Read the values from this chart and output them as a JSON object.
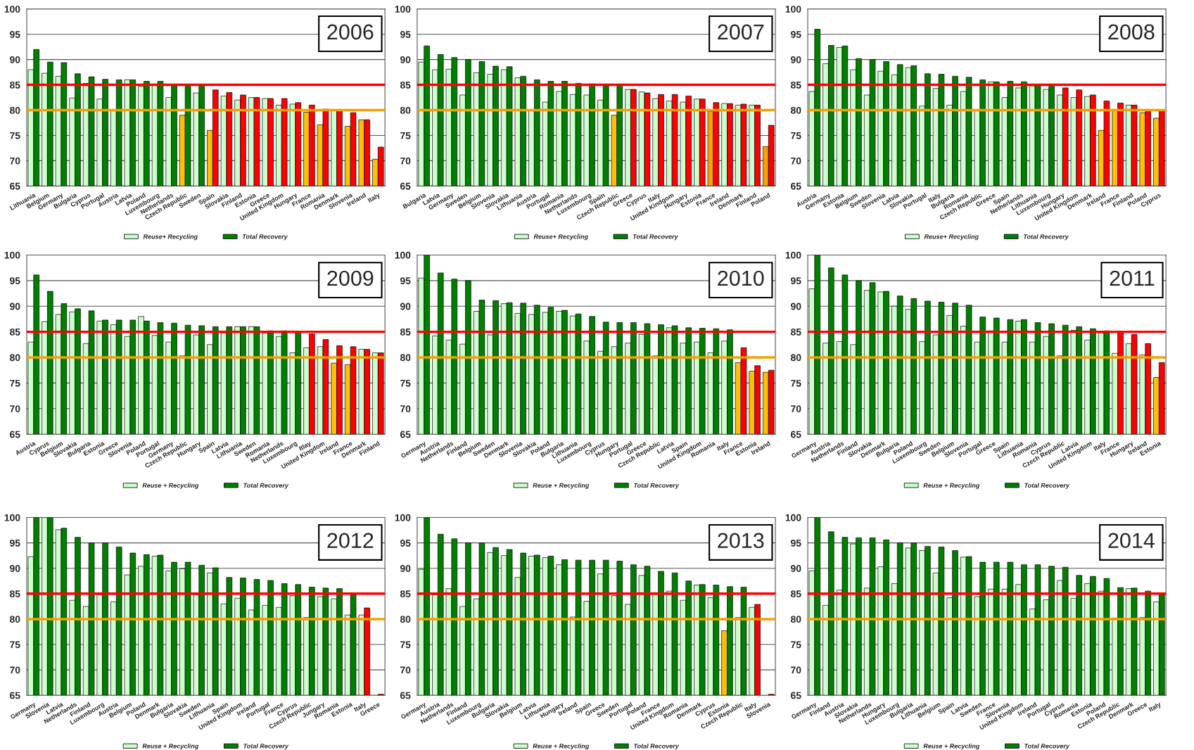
{
  "chart_data": [
    {
      "type": "bar",
      "title": "2006",
      "categories": [
        "Lithuania",
        "Belgium",
        "Germany",
        "Bulgaria",
        "Cyprus",
        "Portugal",
        "Austria",
        "Latvia",
        "Poland",
        "Luxembourg",
        "Netherlands",
        "Czech Republic",
        "Sweden",
        "Spain",
        "Slovakia",
        "Finland",
        "Estonia",
        "Greece",
        "United Kingdom",
        "Hungary",
        "France",
        "Romania",
        "Denmark",
        "Slovenia",
        "Ireland",
        "Italy"
      ],
      "series": [
        {
          "name": "Reuse+ Recycling",
          "color": "#ccffcc",
          "values": [
            88,
            87.3,
            86.7,
            82.4,
            85.3,
            82.2,
            80,
            86,
            84.7,
            85,
            82.5,
            79,
            83.4,
            76,
            82.8,
            82,
            82.5,
            82.3,
            81,
            81.2,
            79.6,
            77.1,
            80,
            76.8,
            78.1,
            70.3
          ],
          "colors": [
            "#ccffcc",
            "#ccffcc",
            "#ccffcc",
            "#ccffcc",
            "#ccffcc",
            "#ccffcc",
            "#ccffcc",
            "#ccffcc",
            "#ccffcc",
            "#ccffcc",
            "#ccffcc",
            "#ffc000",
            "#ccffcc",
            "#ffc000",
            "#ccffcc",
            "#ccffcc",
            "#ccffcc",
            "#ccffcc",
            "#ccffcc",
            "#ccffcc",
            "#ffc000",
            "#ffc000",
            "#ccffcc",
            "#ffc000",
            "#ffc000",
            "#ffc000"
          ]
        },
        {
          "name": "Total Recovery",
          "color": "#008000",
          "values": [
            92,
            89.5,
            89.4,
            87.2,
            86.6,
            86.1,
            86,
            86,
            85.7,
            85.7,
            85.1,
            85,
            85,
            84,
            83.5,
            83,
            82.5,
            82.3,
            82.3,
            81.5,
            81,
            80.2,
            80,
            79.5,
            78.1,
            72.7
          ],
          "colors": [
            "#008000",
            "#008000",
            "#008000",
            "#008000",
            "#008000",
            "#008000",
            "#008000",
            "#008000",
            "#008000",
            "#008000",
            "#008000",
            "#008000",
            "#008000",
            "#ff0000",
            "#ff0000",
            "#ff0000",
            "#ff0000",
            "#ff0000",
            "#ff0000",
            "#ff0000",
            "#ff0000",
            "#ff0000",
            "#ff0000",
            "#ff0000",
            "#ff0000",
            "#ff0000"
          ]
        }
      ],
      "ylim": [
        65,
        100
      ],
      "yticks": [
        65,
        70,
        75,
        80,
        85,
        90,
        95,
        100
      ],
      "grid": "y",
      "legend": "bottom",
      "ref_lines": [
        {
          "axis": "y",
          "value": 85,
          "color": "#ff0000"
        },
        {
          "axis": "y",
          "value": 80,
          "color": "#f5a000"
        }
      ]
    },
    {
      "type": "bar",
      "title": "2007",
      "categories": [
        "Bulgaria",
        "Latvia",
        "Germany",
        "Sweden",
        "Belgium",
        "Slovenia",
        "Slovakia",
        "Lithuania",
        "Austria",
        "Portugal",
        "Romania",
        "Netherlands",
        "Luxembourg",
        "Spain",
        "Czech Republic",
        "Greece",
        "Cyprus",
        "Italy",
        "United Kindgom",
        "Hungary",
        "Estonia",
        "France",
        "Ireland",
        "Denmark",
        "Finland",
        "Poland"
      ],
      "series": [
        {
          "name": "Reuse+ Recycling",
          "color": "#ccffcc",
          "values": [
            89.5,
            88,
            88.1,
            83,
            87.4,
            87.1,
            88,
            86.4,
            80,
            81.6,
            83.7,
            83.1,
            83,
            82,
            79,
            84.1,
            83.6,
            82.3,
            81.8,
            81.6,
            82.2,
            79.8,
            81.3,
            81,
            81,
            72.8
          ],
          "colors": [
            "#ccffcc",
            "#ccffcc",
            "#ccffcc",
            "#ccffcc",
            "#ccffcc",
            "#ccffcc",
            "#ccffcc",
            "#ccffcc",
            "#ccffcc",
            "#ccffcc",
            "#ccffcc",
            "#ccffcc",
            "#ccffcc",
            "#ccffcc",
            "#ffc000",
            "#ccffcc",
            "#ccffcc",
            "#ccffcc",
            "#ccffcc",
            "#ccffcc",
            "#ccffcc",
            "#ffa000",
            "#ccffcc",
            "#ccffcc",
            "#ccffcc",
            "#ffa000"
          ]
        },
        {
          "name": "Total Recovery",
          "color": "#008000",
          "values": [
            92.7,
            91,
            90.4,
            90,
            89.6,
            88.7,
            88.6,
            86.7,
            86,
            85.7,
            85.7,
            85.3,
            85.2,
            85.1,
            85,
            84.1,
            83.4,
            83.1,
            83.1,
            82.8,
            82.2,
            81.5,
            81.3,
            81.2,
            81,
            77
          ],
          "colors": [
            "#008000",
            "#008000",
            "#008000",
            "#008000",
            "#008000",
            "#008000",
            "#008000",
            "#008000",
            "#008000",
            "#008000",
            "#008000",
            "#008000",
            "#008000",
            "#008000",
            "#008000",
            "#ff0000",
            "#ff0000",
            "#ff0000",
            "#ff0000",
            "#ff0000",
            "#ff0000",
            "#ff0000",
            "#ff0000",
            "#ff0000",
            "#ff0000",
            "#ff0000"
          ]
        }
      ],
      "ylim": [
        65,
        100
      ],
      "yticks": [
        65,
        70,
        75,
        80,
        85,
        90,
        95,
        100
      ],
      "grid": "y",
      "legend": "bottom",
      "ref_lines": [
        {
          "axis": "y",
          "value": 85,
          "color": "#ff0000"
        },
        {
          "axis": "y",
          "value": 80,
          "color": "#f5a000"
        }
      ]
    },
    {
      "type": "bar",
      "title": "2008",
      "categories": [
        "Austria",
        "Germany",
        "Estonia",
        "Belgium",
        "Sweden",
        "Slovenia",
        "Latvia",
        "Slovakia",
        "Portugal",
        "Italy",
        "Bulgaria",
        "Romania",
        "Czech Republic",
        "Greece",
        "Spain",
        "Netherlands",
        "Lithuania",
        "Luxembourg",
        "Hungary",
        "United Kingdom",
        "Denmark",
        "Ireland",
        "France",
        "Finland",
        "Poland",
        "Cyprus"
      ],
      "series": [
        {
          "name": "Reuse+ Recycling",
          "color": "#ccffcc",
          "values": [
            83.7,
            89.2,
            92.4,
            88,
            83,
            87.7,
            87,
            88.4,
            80.8,
            84.3,
            81,
            83.7,
            80,
            85.6,
            82.5,
            84.4,
            84.8,
            84.1,
            83,
            82.5,
            82.7,
            76,
            79.9,
            81,
            79.5,
            78.4
          ],
          "colors": [
            "#ccffcc",
            "#ccffcc",
            "#ccffcc",
            "#ccffcc",
            "#ccffcc",
            "#ccffcc",
            "#ccffcc",
            "#ccffcc",
            "#ccffcc",
            "#ccffcc",
            "#ccffcc",
            "#ccffcc",
            "#ccffcc",
            "#ccffcc",
            "#ccffcc",
            "#ccffcc",
            "#ccffcc",
            "#ccffcc",
            "#ccffcc",
            "#ccffcc",
            "#ccffcc",
            "#ffc000",
            "#ffc000",
            "#ccffcc",
            "#ffc000",
            "#ffc000"
          ]
        },
        {
          "name": "Total Recovery",
          "color": "#008000",
          "values": [
            96,
            92.8,
            92.7,
            90.2,
            90,
            89.6,
            89,
            88.8,
            87.2,
            87.1,
            86.7,
            86.5,
            86,
            85.6,
            85.7,
            85.6,
            85,
            85,
            84.4,
            84,
            83,
            81.8,
            81.4,
            81,
            80,
            79.8
          ],
          "colors": [
            "#008000",
            "#008000",
            "#008000",
            "#008000",
            "#008000",
            "#008000",
            "#008000",
            "#008000",
            "#008000",
            "#008000",
            "#008000",
            "#008000",
            "#008000",
            "#008000",
            "#008000",
            "#008000",
            "#008000",
            "#008000",
            "#ff0000",
            "#ff0000",
            "#ff0000",
            "#ff0000",
            "#ff0000",
            "#ff0000",
            "#ff0000",
            "#ff0000"
          ]
        }
      ],
      "ylim": [
        65,
        100
      ],
      "yticks": [
        65,
        70,
        75,
        80,
        85,
        90,
        95,
        100
      ],
      "grid": "y",
      "legend": "bottom",
      "ref_lines": [
        {
          "axis": "y",
          "value": 85,
          "color": "#ff0000"
        },
        {
          "axis": "y",
          "value": 80,
          "color": "#f5a000"
        }
      ]
    },
    {
      "type": "bar",
      "title": "2009",
      "categories": [
        "Austria",
        "Cyprus",
        "Belgium",
        "Slovakia",
        "Bulgaria",
        "Estonia",
        "Greece",
        "Slovenia",
        "Poland",
        "Portugal",
        "Germany",
        "Czech Republic",
        "Hungary",
        "Spain",
        "Latvia",
        "Lithuania",
        "Sweden",
        "Romania",
        "Netherlands",
        "Luxembourg",
        "Itlay",
        "United Kingdom",
        "Ireland",
        "France",
        "Denmark",
        "Finland"
      ],
      "series": [
        {
          "name": "Reuse + Recycling",
          "color": "#ccffcc",
          "values": [
            83,
            87,
            88.4,
            88.9,
            82.7,
            87.1,
            86.4,
            84.1,
            88,
            84.3,
            83,
            80.3,
            84.4,
            82.5,
            84.8,
            86,
            86,
            84.8,
            84.1,
            80.9,
            81.9,
            82.1,
            78.9,
            78.6,
            81.6,
            80.9
          ],
          "colors": [
            "#ccffcc",
            "#ccffcc",
            "#ccffcc",
            "#ccffcc",
            "#ccffcc",
            "#ccffcc",
            "#ccffcc",
            "#ccffcc",
            "#ccffcc",
            "#ccffcc",
            "#ccffcc",
            "#ccffcc",
            "#ccffcc",
            "#ccffcc",
            "#ccffcc",
            "#ccffcc",
            "#ccffcc",
            "#ccffcc",
            "#ccffcc",
            "#ccffcc",
            "#ccffcc",
            "#ccffcc",
            "#ffc000",
            "#ffc000",
            "#ccffcc",
            "#ccffcc"
          ]
        },
        {
          "name": "Total Recovery",
          "color": "#008000",
          "values": [
            96.1,
            92.9,
            90.5,
            89.5,
            89.1,
            87.3,
            87.3,
            87.3,
            87.1,
            86.8,
            86.7,
            86.3,
            86.2,
            86,
            86,
            86,
            86,
            85.2,
            85.2,
            85,
            84.6,
            83.5,
            82.3,
            82.1,
            81.6,
            80.9
          ],
          "colors": [
            "#008000",
            "#008000",
            "#008000",
            "#008000",
            "#008000",
            "#008000",
            "#008000",
            "#008000",
            "#008000",
            "#008000",
            "#008000",
            "#008000",
            "#008000",
            "#008000",
            "#008000",
            "#008000",
            "#008000",
            "#008000",
            "#008000",
            "#008000",
            "#ff0000",
            "#ff0000",
            "#ff0000",
            "#ff0000",
            "#ff0000",
            "#ff0000"
          ]
        }
      ],
      "ylim": [
        65,
        100
      ],
      "yticks": [
        65,
        70,
        75,
        80,
        85,
        90,
        95,
        100
      ],
      "grid": "y",
      "legend": "bottom",
      "ref_lines": [
        {
          "axis": "y",
          "value": 85,
          "color": "#ff0000"
        },
        {
          "axis": "y",
          "value": 80,
          "color": "#f5a000"
        }
      ]
    },
    {
      "type": "bar",
      "title": "2010",
      "categories": [
        "Germany",
        "Austria",
        "Netherlands",
        "Finland",
        "Belgium",
        "Sweden",
        "Denmark",
        "Slovenia",
        "Slovakia",
        "Poland",
        "Bulgaria",
        "Lithuania",
        "Luxembourg",
        "Cyprus",
        "Hungary",
        "Portugal",
        "Greece",
        "Czech Republic",
        "Latvia",
        "Spain",
        "United Kingdom",
        "Romania",
        "Italy",
        "France",
        "Estonia",
        "Ireland"
      ],
      "series": [
        {
          "name": "Reuse + Recycling",
          "color": "#ccffcc",
          "values": [
            95.5,
            84.2,
            83.4,
            82.6,
            89,
            84.4,
            90.5,
            88.6,
            88.4,
            88.8,
            89,
            88.1,
            83.2,
            81.2,
            82.1,
            82.8,
            84.5,
            80.3,
            85.8,
            82.8,
            83,
            80.9,
            83.2,
            79,
            77.3,
            77.1
          ],
          "colors": [
            "#ccffcc",
            "#ccffcc",
            "#ccffcc",
            "#ccffcc",
            "#ccffcc",
            "#ccffcc",
            "#ccffcc",
            "#ccffcc",
            "#ccffcc",
            "#ccffcc",
            "#ccffcc",
            "#ccffcc",
            "#ccffcc",
            "#ccffcc",
            "#ccffcc",
            "#ccffcc",
            "#ccffcc",
            "#ccffcc",
            "#ccffcc",
            "#ccffcc",
            "#ccffcc",
            "#ccffcc",
            "#ccffcc",
            "#ffc000",
            "#ffc000",
            "#ffc000"
          ]
        },
        {
          "name": "Total Recovery",
          "color": "#008000",
          "values": [
            100,
            96.5,
            95.3,
            95,
            91.2,
            91.1,
            90.7,
            90.6,
            90.2,
            89.8,
            89.2,
            88.5,
            88,
            86.9,
            86.8,
            86.8,
            86.6,
            86.4,
            86.2,
            85.8,
            85.7,
            85.6,
            85.4,
            81.9,
            78.4,
            77.5
          ],
          "colors": [
            "#008000",
            "#008000",
            "#008000",
            "#008000",
            "#008000",
            "#008000",
            "#008000",
            "#008000",
            "#008000",
            "#008000",
            "#008000",
            "#008000",
            "#008000",
            "#008000",
            "#008000",
            "#008000",
            "#008000",
            "#008000",
            "#008000",
            "#008000",
            "#008000",
            "#008000",
            "#008000",
            "#ff0000",
            "#ff0000",
            "#ff0000"
          ]
        }
      ],
      "ylim": [
        65,
        100
      ],
      "yticks": [
        65,
        70,
        75,
        80,
        85,
        90,
        95,
        100
      ],
      "grid": "y",
      "legend": "bottom",
      "ref_lines": [
        {
          "axis": "y",
          "value": 85,
          "color": "#ff0000"
        },
        {
          "axis": "y",
          "value": 80,
          "color": "#f5a000"
        }
      ]
    },
    {
      "type": "bar",
      "title": "2011",
      "categories": [
        "Germany",
        "Austria",
        "Netherlands",
        "Finland",
        "Slovakia",
        "Denmark",
        "Bulgaria",
        "Poland",
        "Luxembourg",
        "Sweden",
        "Belgium",
        "Slovenia",
        "Portugal",
        "Greece",
        "Spain",
        "Lithuania",
        "Romania",
        "Cyprus",
        "Czech Republic",
        "Latvia",
        "United Kingdom",
        "Italy",
        "France",
        "Hungary",
        "Ireland",
        "Estonia"
      ],
      "series": [
        {
          "name": "Reuse + Recycling",
          "color": "#ccffcc",
          "values": [
            93.4,
            82.8,
            83.1,
            82.5,
            93.1,
            92.8,
            90,
            89.4,
            83.1,
            84.4,
            88.2,
            86.1,
            83,
            85.2,
            83,
            87.1,
            83,
            84.1,
            80.3,
            85.3,
            83.4,
            84.8,
            80.8,
            82.7,
            80.5,
            76.1
          ],
          "colors": [
            "#ccffcc",
            "#ccffcc",
            "#ccffcc",
            "#ccffcc",
            "#ccffcc",
            "#ccffcc",
            "#ccffcc",
            "#ccffcc",
            "#ccffcc",
            "#ccffcc",
            "#ccffcc",
            "#ccffcc",
            "#ccffcc",
            "#ccffcc",
            "#ccffcc",
            "#ccffcc",
            "#ccffcc",
            "#ccffcc",
            "#ccffcc",
            "#ccffcc",
            "#ccffcc",
            "#ccffcc",
            "#ccffcc",
            "#ccffcc",
            "#ccffcc",
            "#ffc000"
          ]
        },
        {
          "name": "Total Recovery",
          "color": "#008000",
          "values": [
            100,
            97.5,
            96.1,
            95,
            94.6,
            92.9,
            92,
            91.5,
            91,
            90.8,
            90.6,
            90.2,
            87.9,
            87.7,
            87.4,
            87.4,
            86.8,
            86.6,
            86.3,
            86,
            85.6,
            85.2,
            84.9,
            84.5,
            82.7,
            79
          ],
          "colors": [
            "#008000",
            "#008000",
            "#008000",
            "#008000",
            "#008000",
            "#008000",
            "#008000",
            "#008000",
            "#008000",
            "#008000",
            "#008000",
            "#008000",
            "#008000",
            "#008000",
            "#008000",
            "#008000",
            "#008000",
            "#008000",
            "#008000",
            "#008000",
            "#008000",
            "#008000",
            "#ff0000",
            "#ff0000",
            "#ff0000",
            "#ff0000"
          ]
        }
      ],
      "ylim": [
        65,
        100
      ],
      "yticks": [
        65,
        70,
        75,
        80,
        85,
        90,
        95,
        100
      ],
      "grid": "y",
      "legend": "bottom",
      "ref_lines": [
        {
          "axis": "y",
          "value": 85,
          "color": "#ff0000"
        },
        {
          "axis": "y",
          "value": 80,
          "color": "#f5a000"
        }
      ]
    },
    {
      "type": "bar",
      "title": "2012",
      "categories": [
        "Germany",
        "Slovenia",
        "Latvia",
        "Netherlands",
        "Finland",
        "Luxembourg",
        "Austria",
        "Belgium",
        "Poland",
        "Denmark",
        "Bulgaria",
        "Slovakia",
        "Sweden",
        "Lithuania",
        "Spain",
        "United Kingdom",
        "Ireland",
        "Portugal",
        "France",
        "Cyprus",
        "Czech Republic",
        "Jungary",
        "Romania",
        "Estonia",
        "Italy",
        "Greece"
      ],
      "series": [
        {
          "name": "Reuse + Recycling",
          "color": "#ccffcc",
          "values": [
            92.3,
            100,
            97.6,
            83.7,
            82.5,
            84.8,
            83.4,
            88.7,
            90.4,
            92.4,
            89.5,
            89.9,
            84.8,
            89.1,
            83,
            84.1,
            81.8,
            82.7,
            82.3,
            84.6,
            80.3,
            84.4,
            84,
            80.8,
            80.8,
            null
          ],
          "colors": [
            "#ccffcc",
            "#ccffcc",
            "#ccffcc",
            "#ccffcc",
            "#ccffcc",
            "#ccffcc",
            "#ccffcc",
            "#ccffcc",
            "#ccffcc",
            "#ccffcc",
            "#ccffcc",
            "#ccffcc",
            "#ccffcc",
            "#ccffcc",
            "#ccffcc",
            "#ccffcc",
            "#ccffcc",
            "#ccffcc",
            "#ccffcc",
            "#ccffcc",
            "#ccffcc",
            "#ccffcc",
            "#ccffcc",
            "#ccffcc",
            "#ccffcc",
            "#ccffcc"
          ]
        },
        {
          "name": "Total Recovery",
          "color": "#008000",
          "values": [
            100,
            100,
            97.9,
            96.1,
            95,
            95,
            94.2,
            93,
            92.7,
            92.6,
            91.2,
            91.2,
            90.6,
            90.1,
            88.2,
            88.1,
            87.8,
            87.6,
            87,
            86.8,
            86.3,
            86.1,
            86,
            85,
            82.2,
            65.2
          ],
          "colors": [
            "#008000",
            "#008000",
            "#008000",
            "#008000",
            "#008000",
            "#008000",
            "#008000",
            "#008000",
            "#008000",
            "#008000",
            "#008000",
            "#008000",
            "#008000",
            "#008000",
            "#008000",
            "#008000",
            "#008000",
            "#008000",
            "#008000",
            "#008000",
            "#008000",
            "#008000",
            "#008000",
            "#008000",
            "#ff0000",
            "#ff0000"
          ]
        }
      ],
      "ylim": [
        65,
        100
      ],
      "yticks": [
        65,
        70,
        75,
        80,
        85,
        90,
        95,
        100
      ],
      "grid": "y",
      "legend": "bottom",
      "ref_lines": [
        {
          "axis": "y",
          "value": 85,
          "color": "#ff0000"
        },
        {
          "axis": "y",
          "value": 80,
          "color": "#f5a000"
        }
      ]
    },
    {
      "type": "bar",
      "title": "2013",
      "categories": [
        "Germany",
        "Austria",
        "Netherlands",
        "Finland",
        "Luxembourg",
        "Bulgaria",
        "Slovakia",
        "Belgium",
        "Latvia",
        "Lithuania",
        "Hungary",
        "Ireland",
        "Spain",
        "Greece",
        "Sweden",
        "Portugal",
        "Poland",
        "France",
        "United Kingdom",
        "Romania",
        "Denmark",
        "Cyprus",
        "Estonia",
        "Czech Republic",
        "Italy",
        "Slovenia"
      ],
      "series": [
        {
          "name": "Reuse + Recycling",
          "color": "#ccffcc",
          "values": [
            89.8,
            84.8,
            86,
            82.5,
            84,
            93.1,
            92.5,
            88.2,
            92.4,
            92.1,
            90.7,
            80.4,
            83.5,
            88.9,
            84.6,
            82.9,
            88.6,
            85.2,
            85.5,
            83.7,
            86.7,
            84.2,
            77.7,
            80.3,
            82.3,
            null
          ],
          "colors": [
            "#ccffcc",
            "#ccffcc",
            "#ccffcc",
            "#ccffcc",
            "#ccffcc",
            "#ccffcc",
            "#ccffcc",
            "#ccffcc",
            "#ccffcc",
            "#ccffcc",
            "#ccffcc",
            "#ccffcc",
            "#ccffcc",
            "#ccffcc",
            "#ccffcc",
            "#ccffcc",
            "#ccffcc",
            "#ccffcc",
            "#ccffcc",
            "#ccffcc",
            "#ccffcc",
            "#ccffcc",
            "#ffc000",
            "#ccffcc",
            "#ccffcc",
            "#ccffcc"
          ]
        },
        {
          "name": "Total Recovery",
          "color": "#008000",
          "values": [
            100,
            96.7,
            95.8,
            95,
            95,
            94.1,
            93.7,
            93,
            92.6,
            92.4,
            91.7,
            91.6,
            91.6,
            91.6,
            91.4,
            90.7,
            90.4,
            89.4,
            89.1,
            87.5,
            86.8,
            86.7,
            86.4,
            86.3,
            82.9,
            65.2
          ],
          "colors": [
            "#008000",
            "#008000",
            "#008000",
            "#008000",
            "#008000",
            "#008000",
            "#008000",
            "#008000",
            "#008000",
            "#008000",
            "#008000",
            "#008000",
            "#008000",
            "#008000",
            "#008000",
            "#008000",
            "#008000",
            "#008000",
            "#008000",
            "#008000",
            "#008000",
            "#008000",
            "#008000",
            "#008000",
            "#ff0000",
            "#ff0000"
          ]
        }
      ],
      "ylim": [
        65,
        100
      ],
      "yticks": [
        65,
        70,
        75,
        80,
        85,
        90,
        95,
        100
      ],
      "grid": "y",
      "legend": "bottom",
      "ref_lines": [
        {
          "axis": "y",
          "value": 85,
          "color": "#ff0000"
        },
        {
          "axis": "y",
          "value": 80,
          "color": "#f5a000"
        }
      ]
    },
    {
      "type": "bar",
      "title": "2014",
      "categories": [
        "Germany",
        "Finland",
        "Austria",
        "Slovakia",
        "Netherlands",
        "Hungary",
        "Luxembourg",
        "Bulgaria",
        "Lithuania",
        "Belgium",
        "Spain",
        "Latvia",
        "Sweden",
        "France",
        "Slovenia",
        "United Kingdom",
        "Ireland",
        "Portugal",
        "Cyprus",
        "Romania",
        "Estonia",
        "Poland",
        "Czech Republic",
        "Denmark",
        "Greece",
        "Italy"
      ],
      "series": [
        {
          "name": "Reuse + Recycling",
          "color": "#ccffcc",
          "values": [
            89.5,
            82.7,
            85.7,
            94.8,
            86.1,
            90.3,
            87,
            94,
            93.5,
            89.1,
            84.2,
            92.2,
            84.4,
            85.9,
            85.9,
            86.8,
            82,
            83.8,
            87.6,
            84.1,
            87,
            85.5,
            80.2,
            86,
            80.3,
            83.4
          ],
          "colors": [
            "#ccffcc",
            "#ccffcc",
            "#ccffcc",
            "#ccffcc",
            "#ccffcc",
            "#ccffcc",
            "#ccffcc",
            "#ccffcc",
            "#ccffcc",
            "#ccffcc",
            "#ccffcc",
            "#ccffcc",
            "#ccffcc",
            "#ccffcc",
            "#ccffcc",
            "#ccffcc",
            "#ccffcc",
            "#ccffcc",
            "#ccffcc",
            "#ccffcc",
            "#ccffcc",
            "#ccffcc",
            "#ccffcc",
            "#ccffcc",
            "#ccffcc",
            "#ccffcc"
          ]
        },
        {
          "name": "Total Recovery",
          "color": "#008000",
          "values": [
            100,
            97.2,
            96.1,
            96,
            96,
            95.6,
            95,
            95,
            94.3,
            94.2,
            93.5,
            92.3,
            91.2,
            91.2,
            91.2,
            90.7,
            90.7,
            90.4,
            90.2,
            88.6,
            88.4,
            88,
            86.2,
            86.1,
            85.5,
            85
          ],
          "colors": [
            "#008000",
            "#008000",
            "#008000",
            "#008000",
            "#008000",
            "#008000",
            "#008000",
            "#008000",
            "#008000",
            "#008000",
            "#008000",
            "#008000",
            "#008000",
            "#008000",
            "#008000",
            "#008000",
            "#008000",
            "#008000",
            "#008000",
            "#008000",
            "#008000",
            "#008000",
            "#008000",
            "#008000",
            "#008000",
            "#008000"
          ]
        }
      ],
      "ylim": [
        65,
        100
      ],
      "yticks": [
        65,
        70,
        75,
        80,
        85,
        90,
        95,
        100
      ],
      "grid": "y",
      "legend": "bottom",
      "ref_lines": [
        {
          "axis": "y",
          "value": 85,
          "color": "#ff0000"
        },
        {
          "axis": "y",
          "value": 80,
          "color": "#f5a000"
        }
      ]
    }
  ]
}
